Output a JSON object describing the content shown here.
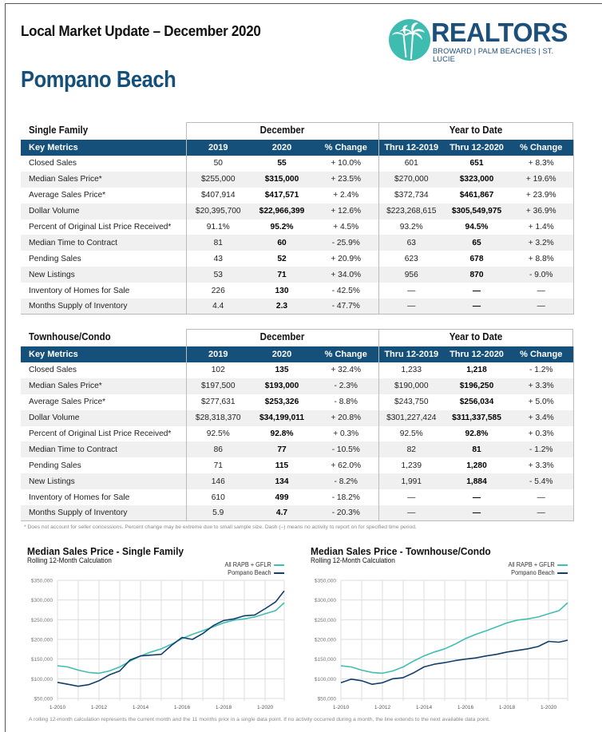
{
  "header": {
    "title": "Local Market Update – December 2020",
    "city": "Pompano Beach"
  },
  "logo": {
    "wordmark": "REALTORS",
    "subline": "BROWARD | PALM BEACHES | ST. LUCIE",
    "icon": "palm-tree-icon",
    "colors": {
      "circle": "#3fbcb0",
      "text": "#1d4f7b"
    }
  },
  "colors": {
    "header_bar": "#14507a",
    "city_title": "#14507a",
    "teal_line": "#3fbfb0",
    "navy_line": "#123f6b"
  },
  "tables": [
    {
      "section": "Single Family",
      "group_december": "December",
      "group_ytd": "Year to Date",
      "columns": [
        "Key Metrics",
        "2019",
        "2020",
        "% Change",
        "Thru 12-2019",
        "Thru 12-2020",
        "% Change"
      ],
      "rows": [
        [
          "Closed Sales",
          "50",
          "55",
          "+ 10.0%",
          "601",
          "651",
          "+ 8.3%"
        ],
        [
          "Median Sales Price*",
          "$255,000",
          "$315,000",
          "+ 23.5%",
          "$270,000",
          "$323,000",
          "+ 19.6%"
        ],
        [
          "Average Sales Price*",
          "$407,914",
          "$417,571",
          "+ 2.4%",
          "$372,734",
          "$461,867",
          "+ 23.9%"
        ],
        [
          "Dollar Volume",
          "$20,395,700",
          "$22,966,399",
          "+ 12.6%",
          "$223,268,615",
          "$305,549,975",
          "+ 36.9%"
        ],
        [
          "Percent of Original List Price Received*",
          "91.1%",
          "95.2%",
          "+ 4.5%",
          "93.2%",
          "94.5%",
          "+ 1.4%"
        ],
        [
          "Median Time to Contract",
          "81",
          "60",
          "- 25.9%",
          "63",
          "65",
          "+ 3.2%"
        ],
        [
          "Pending Sales",
          "43",
          "52",
          "+ 20.9%",
          "623",
          "678",
          "+ 8.8%"
        ],
        [
          "New Listings",
          "53",
          "71",
          "+ 34.0%",
          "956",
          "870",
          "- 9.0%"
        ],
        [
          "Inventory of Homes for Sale",
          "226",
          "130",
          "- 42.5%",
          "—",
          "—",
          "—"
        ],
        [
          "Months Supply of Inventory",
          "4.4",
          "2.3",
          "- 47.7%",
          "—",
          "—",
          "—"
        ]
      ]
    },
    {
      "section": "Townhouse/Condo",
      "group_december": "December",
      "group_ytd": "Year to Date",
      "columns": [
        "Key Metrics",
        "2019",
        "2020",
        "% Change",
        "Thru 12-2019",
        "Thru 12-2020",
        "% Change"
      ],
      "rows": [
        [
          "Closed Sales",
          "102",
          "135",
          "+ 32.4%",
          "1,233",
          "1,218",
          "- 1.2%"
        ],
        [
          "Median Sales Price*",
          "$197,500",
          "$193,000",
          "- 2.3%",
          "$190,000",
          "$196,250",
          "+ 3.3%"
        ],
        [
          "Average Sales Price*",
          "$277,631",
          "$253,326",
          "- 8.8%",
          "$243,750",
          "$256,034",
          "+ 5.0%"
        ],
        [
          "Dollar Volume",
          "$28,318,370",
          "$34,199,011",
          "+ 20.8%",
          "$301,227,424",
          "$311,337,585",
          "+ 3.4%"
        ],
        [
          "Percent of Original List Price Received*",
          "92.5%",
          "92.8%",
          "+ 0.3%",
          "92.5%",
          "92.8%",
          "+ 0.3%"
        ],
        [
          "Median Time to Contract",
          "86",
          "77",
          "- 10.5%",
          "82",
          "81",
          "- 1.2%"
        ],
        [
          "Pending Sales",
          "71",
          "115",
          "+ 62.0%",
          "1,239",
          "1,280",
          "+ 3.3%"
        ],
        [
          "New Listings",
          "146",
          "134",
          "- 8.2%",
          "1,991",
          "1,884",
          "- 5.4%"
        ],
        [
          "Inventory of Homes for Sale",
          "610",
          "499",
          "- 18.2%",
          "—",
          "—",
          "—"
        ],
        [
          "Months Supply of Inventory",
          "5.9",
          "4.7",
          "- 20.3%",
          "—",
          "—",
          "—"
        ]
      ]
    }
  ],
  "footnote": "* Does not account for seller concessions. Percent change may be extreme due to small sample size. Dash (–) means no activity to report on for specified time period.",
  "bottom_note": "A rolling 12-month calculation represents the current month and the 11 months prior in a single data point. If no activity occurred during a month, the line extends to the next available data point.",
  "chart_data": [
    {
      "type": "line",
      "title": "Median Sales Price - Single Family",
      "subtitle": "Rolling 12-Month Calculation",
      "xlabel": "",
      "ylabel": "",
      "ylim": [
        50000,
        350000
      ],
      "yticks": [
        "$350,000",
        "$300,000",
        "$250,000",
        "$200,000",
        "$150,000",
        "$100,000",
        "$50,000"
      ],
      "xticks": [
        "1-2010",
        "1-2012",
        "1-2014",
        "1-2016",
        "1-2018",
        "1-2020"
      ],
      "grid": true,
      "legend_position": "top-right",
      "x": [
        2010.0,
        2010.5,
        2011.0,
        2011.5,
        2012.0,
        2012.5,
        2013.0,
        2013.5,
        2014.0,
        2014.5,
        2015.0,
        2015.5,
        2016.0,
        2016.5,
        2017.0,
        2017.5,
        2018.0,
        2018.5,
        2019.0,
        2019.5,
        2020.0,
        2020.5,
        2020.92
      ],
      "series": [
        {
          "name": "All RAPB + GFLR",
          "color": "#3fbfb0",
          "values": [
            133000,
            130000,
            122000,
            116000,
            114000,
            120000,
            130000,
            145000,
            158000,
            168000,
            176000,
            188000,
            202000,
            213000,
            222000,
            232000,
            242000,
            249000,
            252000,
            257000,
            265000,
            273000,
            293000
          ]
        },
        {
          "name": "Pompano Beach",
          "color": "#123f6b",
          "values": [
            91000,
            86000,
            81000,
            85000,
            95000,
            110000,
            120000,
            148000,
            158000,
            160000,
            162000,
            185000,
            205000,
            200000,
            215000,
            235000,
            248000,
            252000,
            260000,
            262000,
            278000,
            295000,
            323000
          ]
        }
      ]
    },
    {
      "type": "line",
      "title": "Median Sales Price - Townhouse/Condo",
      "subtitle": "Rolling 12-Month Calculation",
      "xlabel": "",
      "ylabel": "",
      "ylim": [
        50000,
        350000
      ],
      "yticks": [
        "$350,000",
        "$300,000",
        "$250,000",
        "$200,000",
        "$150,000",
        "$100,000",
        "$50,000"
      ],
      "xticks": [
        "1-2010",
        "1-2012",
        "1-2014",
        "1-2016",
        "1-2018",
        "1-2020"
      ],
      "grid": true,
      "legend_position": "top-right",
      "x": [
        2010.0,
        2010.5,
        2011.0,
        2011.5,
        2012.0,
        2012.5,
        2013.0,
        2013.5,
        2014.0,
        2014.5,
        2015.0,
        2015.5,
        2016.0,
        2016.5,
        2017.0,
        2017.5,
        2018.0,
        2018.5,
        2019.0,
        2019.5,
        2020.0,
        2020.5,
        2020.92
      ],
      "series": [
        {
          "name": "All RAPB + GFLR",
          "color": "#3fbfb0",
          "values": [
            133000,
            130000,
            122000,
            116000,
            114000,
            120000,
            130000,
            145000,
            158000,
            168000,
            176000,
            188000,
            202000,
            213000,
            222000,
            232000,
            242000,
            249000,
            252000,
            257000,
            265000,
            273000,
            293000
          ]
        },
        {
          "name": "Pompano Beach",
          "color": "#123f6b",
          "values": [
            90000,
            99000,
            95000,
            86000,
            90000,
            100000,
            103000,
            115000,
            130000,
            137000,
            141000,
            146000,
            150000,
            153000,
            158000,
            162000,
            168000,
            172000,
            176000,
            182000,
            195000,
            193000,
            198000
          ]
        }
      ]
    }
  ]
}
